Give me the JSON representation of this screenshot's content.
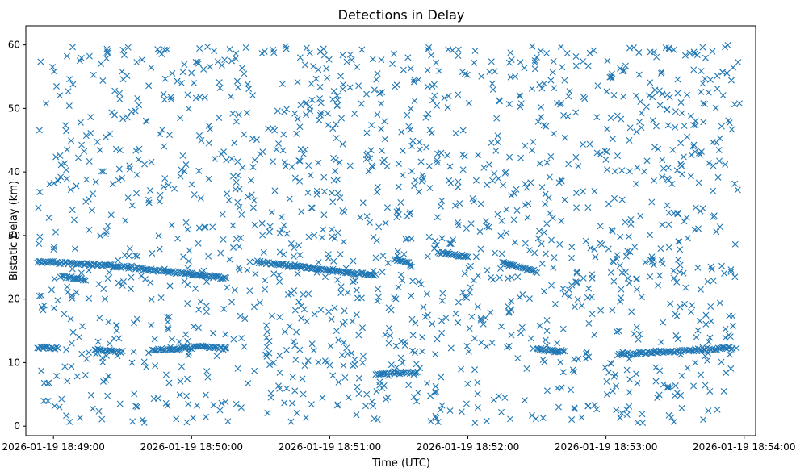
{
  "chart_data": {
    "type": "scatter",
    "title": "Detections in Delay",
    "xlabel": "Time (UTC)",
    "ylabel": "Bistatic Delay (km)",
    "marker": "x",
    "marker_color": "#1f77b4",
    "x_ticks": [
      "2026-01-19 18:49:00",
      "2026-01-19 18:50:00",
      "2026-01-19 18:51:00",
      "2026-01-19 18:52:00",
      "2026-01-19 18:53:00",
      "2026-01-19 18:54:00"
    ],
    "y_ticks": [
      0,
      10,
      20,
      30,
      40,
      50,
      60
    ],
    "xlim": [
      "2026-01-19 18:48:48",
      "2026-01-19 18:54:05"
    ],
    "ylim": [
      -1.5,
      63
    ],
    "grid": false,
    "tracks": [
      {
        "points": [
          [
            "2026-01-19 18:48:53",
            25.9
          ],
          [
            "2026-01-19 18:49:27",
            25.2
          ],
          [
            "2026-01-19 18:49:50",
            24.3
          ],
          [
            "2026-01-19 18:50:15",
            23.3
          ]
        ]
      },
      {
        "points": [
          [
            "2026-01-19 18:50:28",
            25.9
          ],
          [
            "2026-01-19 18:51:00",
            24.5
          ],
          [
            "2026-01-19 18:51:20",
            23.7
          ]
        ]
      },
      {
        "points": [
          [
            "2026-01-19 18:51:28",
            26.2
          ],
          [
            "2026-01-19 18:51:35",
            25.6
          ]
        ]
      },
      {
        "points": [
          [
            "2026-01-19 18:51:47",
            27.3
          ],
          [
            "2026-01-19 18:52:00",
            26.7
          ]
        ]
      },
      {
        "points": [
          [
            "2026-01-19 18:52:15",
            25.8
          ],
          [
            "2026-01-19 18:52:30",
            24.3
          ]
        ]
      },
      {
        "points": [
          [
            "2026-01-19 18:49:03",
            23.6
          ],
          [
            "2026-01-19 18:49:14",
            23.1
          ]
        ]
      },
      {
        "points": [
          [
            "2026-01-19 18:48:53",
            12.4
          ],
          [
            "2026-01-19 18:49:02",
            12.3
          ]
        ]
      },
      {
        "points": [
          [
            "2026-01-19 18:49:18",
            12.0
          ],
          [
            "2026-01-19 18:49:30",
            11.7
          ]
        ]
      },
      {
        "points": [
          [
            "2026-01-19 18:49:43",
            11.9
          ],
          [
            "2026-01-19 18:50:05",
            12.5
          ],
          [
            "2026-01-19 18:50:15",
            12.2
          ]
        ]
      },
      {
        "points": [
          [
            "2026-01-19 18:51:20",
            8.3
          ],
          [
            "2026-01-19 18:51:38",
            8.4
          ]
        ]
      },
      {
        "points": [
          [
            "2026-01-19 18:52:30",
            12.0
          ],
          [
            "2026-01-19 18:52:42",
            11.8
          ]
        ]
      },
      {
        "points": [
          [
            "2026-01-19 18:53:05",
            11.3
          ],
          [
            "2026-01-19 18:53:55",
            12.3
          ]
        ]
      }
    ],
    "clutter_point_count": 1600
  }
}
